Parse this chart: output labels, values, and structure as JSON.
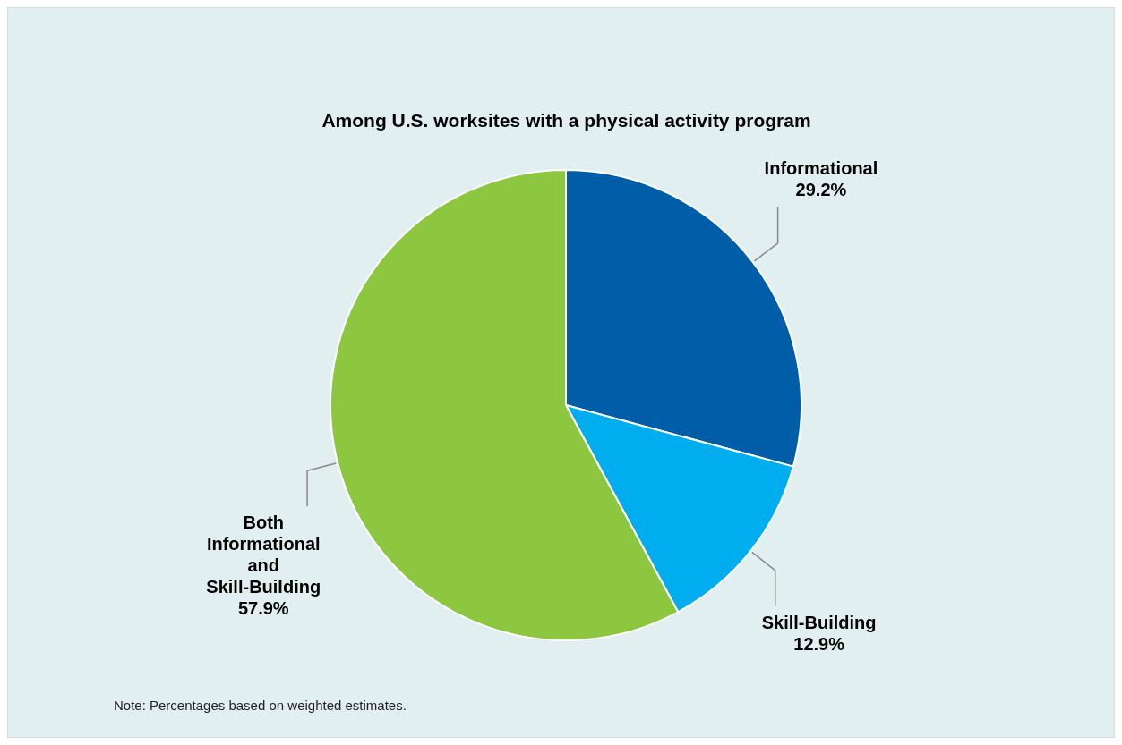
{
  "chart_data": {
    "type": "pie",
    "title": "Among U.S. worksites with a physical activity program",
    "categories": [
      "Informational",
      "Skill-Building",
      "Both Informational and Skill-Building"
    ],
    "values": [
      29.2,
      12.9,
      57.9
    ],
    "value_labels": [
      "29.2%",
      "12.9%",
      "57.9%"
    ],
    "colors": [
      "#005ea8",
      "#00aeef",
      "#8dc63f"
    ],
    "legend": false,
    "annotations": [
      "Note: Percentages based on weighted estimates."
    ]
  }
}
